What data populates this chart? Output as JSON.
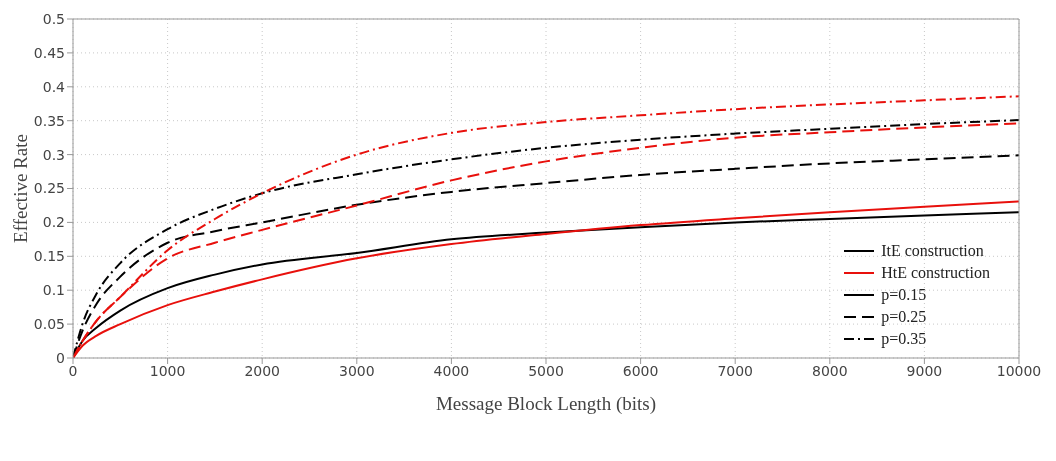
{
  "chart_data": {
    "type": "line",
    "xlabel": "Message Block Length (bits)",
    "ylabel": "Effective Rate",
    "x": [
      0,
      100,
      250,
      500,
      1000,
      1500,
      2000,
      3000,
      4000,
      5000,
      6000,
      7000,
      8000,
      9000,
      10000
    ],
    "series": [
      {
        "color": "#000000",
        "line_style": "solid",
        "values": [
          0,
          0.025,
          0.045,
          0.07,
          0.103,
          0.123,
          0.138,
          0.155,
          0.175,
          0.185,
          0.193,
          0.2,
          0.205,
          0.21,
          0.215
        ]
      },
      {
        "color": "#e8100c",
        "line_style": "solid",
        "values": [
          0,
          0.018,
          0.033,
          0.05,
          0.078,
          0.098,
          0.116,
          0.147,
          0.168,
          0.183,
          0.196,
          0.206,
          0.215,
          0.223,
          0.231
        ]
      },
      {
        "color": "#000000",
        "line_style": "dashed",
        "values": [
          0,
          0.04,
          0.08,
          0.12,
          0.17,
          0.187,
          0.2,
          0.226,
          0.245,
          0.258,
          0.27,
          0.279,
          0.287,
          0.293,
          0.299
        ]
      },
      {
        "color": "#e8100c",
        "line_style": "dashed",
        "values": [
          0,
          0.025,
          0.055,
          0.09,
          0.147,
          0.17,
          0.189,
          0.225,
          0.262,
          0.29,
          0.31,
          0.325,
          0.333,
          0.34,
          0.346
        ]
      },
      {
        "color": "#000000",
        "line_style": "dashdot",
        "values": [
          0,
          0.05,
          0.095,
          0.14,
          0.19,
          0.22,
          0.243,
          0.271,
          0.293,
          0.31,
          0.322,
          0.331,
          0.338,
          0.345,
          0.351
        ]
      },
      {
        "color": "#e8100c",
        "line_style": "dashdot",
        "values": [
          0,
          0.025,
          0.055,
          0.09,
          0.159,
          0.205,
          0.243,
          0.3,
          0.332,
          0.348,
          0.358,
          0.367,
          0.374,
          0.38,
          0.386
        ]
      },
      {
        "name": "ItE construction",
        "color": "#000000",
        "line_style": "solid",
        "values": [
          null,
          null,
          null,
          null,
          null,
          null,
          null,
          null,
          null,
          null,
          null,
          null,
          null,
          null,
          null
        ]
      },
      {
        "name": "HtE construction",
        "color": "#e8100c",
        "line_style": "solid",
        "values": [
          null,
          null,
          null,
          null,
          null,
          null,
          null,
          null,
          null,
          null,
          null,
          null,
          null,
          null,
          null
        ]
      },
      {
        "name": "p=0.15",
        "color": "#000000",
        "line_style": "solid",
        "values": [
          null,
          null,
          null,
          null,
          null,
          null,
          null,
          null,
          null,
          null,
          null,
          null,
          null,
          null,
          null
        ]
      },
      {
        "name": "p=0.25",
        "color": "#000000",
        "line_style": "dashed",
        "values": [
          null,
          null,
          null,
          null,
          null,
          null,
          null,
          null,
          null,
          null,
          null,
          null,
          null,
          null,
          null
        ]
      },
      {
        "name": "p=0.35",
        "color": "#000000",
        "line_style": "dashdot",
        "values": [
          null,
          null,
          null,
          null,
          null,
          null,
          null,
          null,
          null,
          null,
          null,
          null,
          null,
          null,
          null
        ]
      }
    ],
    "xlim": [
      0,
      10000
    ],
    "xticks": [
      0,
      1000,
      2000,
      3000,
      4000,
      5000,
      6000,
      7000,
      8000,
      9000,
      10000
    ],
    "ylim": [
      0,
      0.5
    ],
    "yticks": [
      0,
      0.05,
      0.1,
      0.15,
      0.2,
      0.25,
      0.3,
      0.35,
      0.4,
      0.45,
      0.5
    ],
    "grid": true,
    "legend": "bottom right",
    "marker": "none"
  }
}
